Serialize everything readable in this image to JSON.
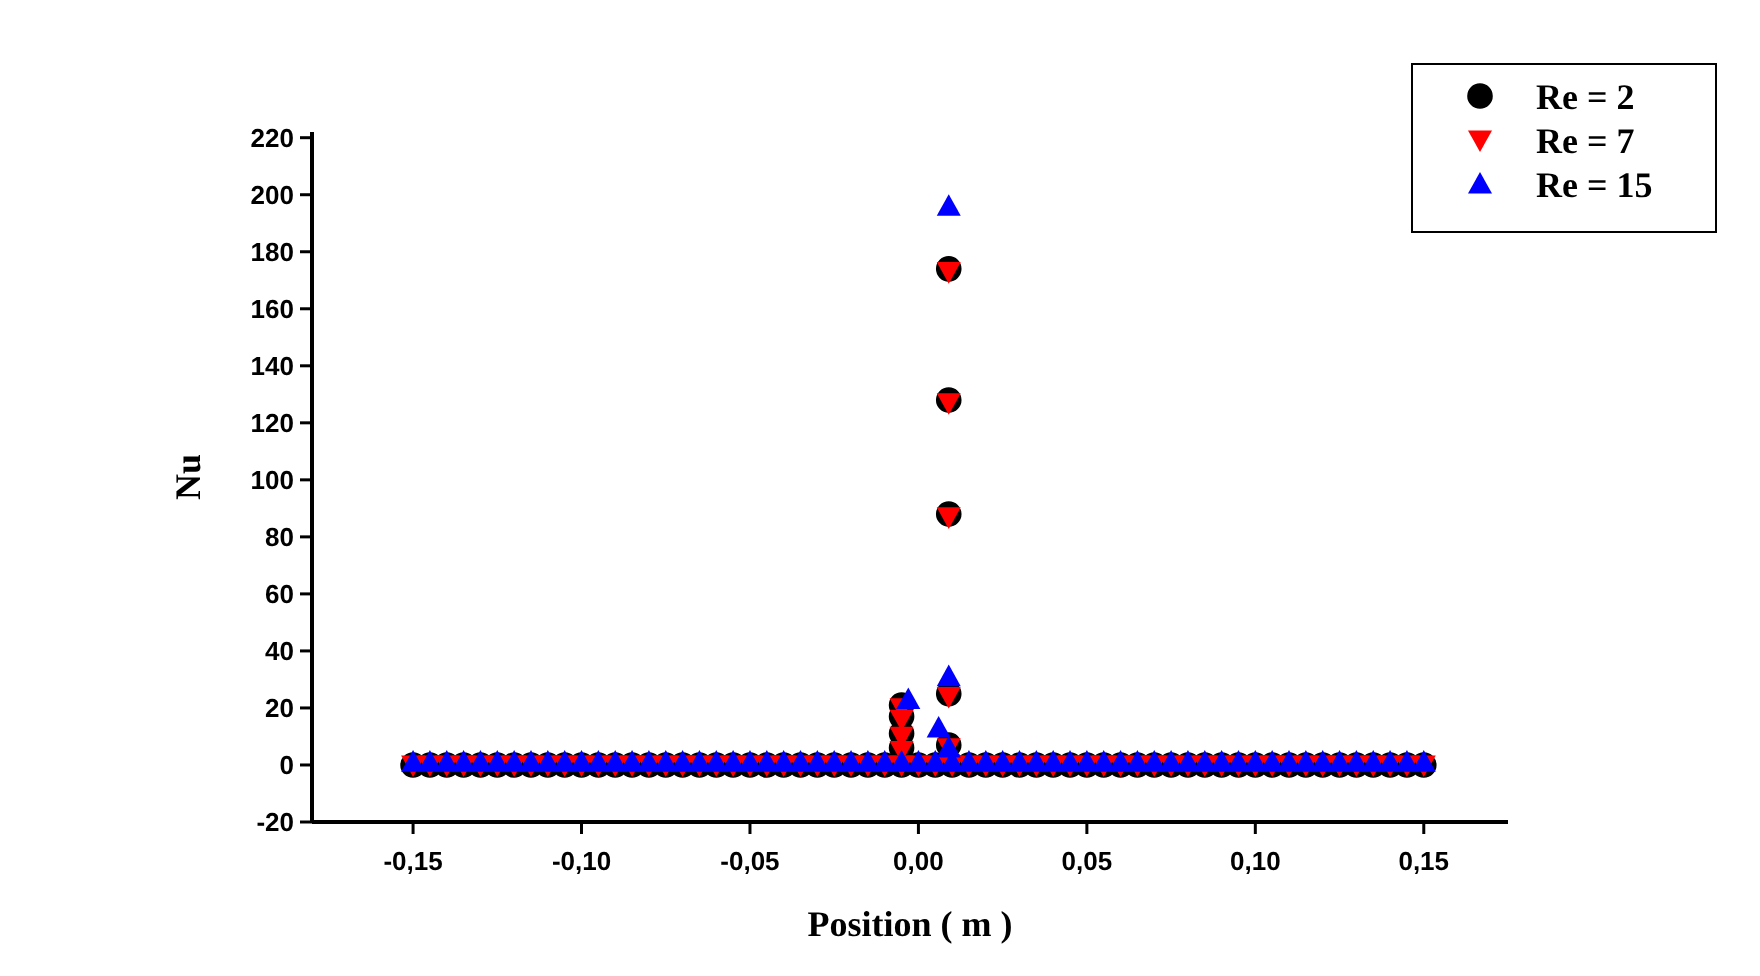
{
  "chart_data": {
    "type": "scatter",
    "xlabel": "Position ( m )",
    "ylabel": "Nu",
    "xlim": [
      -0.18,
      0.175
    ],
    "xticks": [
      {
        "value": -0.15,
        "label": "-0,15"
      },
      {
        "value": -0.1,
        "label": "-0,10"
      },
      {
        "value": -0.05,
        "label": "-0,05"
      },
      {
        "value": 0,
        "label": "0,00"
      },
      {
        "value": 0.05,
        "label": "0,05"
      },
      {
        "value": 0.1,
        "label": "0,10"
      },
      {
        "value": 0.15,
        "label": "0,15"
      }
    ],
    "ylim": [
      -20,
      222
    ],
    "yticks": [
      -20,
      0,
      20,
      40,
      60,
      80,
      100,
      120,
      140,
      160,
      180,
      200,
      220
    ],
    "legend": "top right",
    "grid": false,
    "series": [
      {
        "name": "Re = 2",
        "color": "#000000",
        "marker": "circle",
        "x": [
          -0.15,
          -0.145,
          -0.14,
          -0.135,
          -0.13,
          -0.125,
          -0.12,
          -0.115,
          -0.11,
          -0.105,
          -0.1,
          -0.095,
          -0.09,
          -0.085,
          -0.08,
          -0.075,
          -0.07,
          -0.065,
          -0.06,
          -0.055,
          -0.05,
          -0.045,
          -0.04,
          -0.035,
          -0.03,
          -0.025,
          -0.02,
          -0.015,
          -0.01,
          -0.005,
          0,
          0.005,
          0.01,
          0.015,
          0.02,
          0.025,
          0.03,
          0.035,
          0.04,
          0.045,
          0.05,
          0.055,
          0.06,
          0.065,
          0.07,
          0.075,
          0.08,
          0.085,
          0.09,
          0.095,
          0.1,
          0.105,
          0.11,
          0.115,
          0.12,
          0.125,
          0.13,
          0.135,
          0.14,
          0.145,
          0.15,
          -0.005,
          -0.005,
          -0.005,
          -0.005,
          0.009,
          0.009,
          0.009,
          0.009,
          0.009
        ],
        "values": [
          0,
          0,
          0,
          0,
          0,
          0,
          0,
          0,
          0,
          0,
          0,
          0,
          0,
          0,
          0,
          0,
          0,
          0,
          0,
          0,
          0,
          0,
          0,
          0,
          0,
          0,
          0,
          0,
          0,
          0,
          0,
          0,
          0,
          0,
          0,
          0,
          0,
          0,
          0,
          0,
          0,
          0,
          0,
          0,
          0,
          0,
          0,
          0,
          0,
          0,
          0,
          0,
          0,
          0,
          0,
          0,
          0,
          0,
          0,
          0,
          0,
          21,
          17,
          11,
          6,
          174,
          128,
          88,
          25,
          7
        ]
      },
      {
        "name": "Re = 7",
        "color": "#ff0000",
        "marker": "triangle-down",
        "x": [
          -0.15,
          -0.145,
          -0.14,
          -0.135,
          -0.13,
          -0.125,
          -0.12,
          -0.115,
          -0.11,
          -0.105,
          -0.1,
          -0.095,
          -0.09,
          -0.085,
          -0.08,
          -0.075,
          -0.07,
          -0.065,
          -0.06,
          -0.055,
          -0.05,
          -0.045,
          -0.04,
          -0.035,
          -0.03,
          -0.025,
          -0.02,
          -0.015,
          -0.01,
          -0.005,
          0,
          0.005,
          0.01,
          0.015,
          0.02,
          0.025,
          0.03,
          0.035,
          0.04,
          0.045,
          0.05,
          0.055,
          0.06,
          0.065,
          0.07,
          0.075,
          0.08,
          0.085,
          0.09,
          0.095,
          0.1,
          0.105,
          0.11,
          0.115,
          0.12,
          0.125,
          0.13,
          0.135,
          0.14,
          0.145,
          0.15,
          -0.005,
          -0.005,
          -0.005,
          -0.005,
          0.009,
          0.009,
          0.009,
          0.009,
          0.009
        ],
        "values": [
          0,
          0,
          0,
          0,
          0,
          0,
          0,
          0,
          0,
          0,
          0,
          0,
          0,
          0,
          0,
          0,
          0,
          0,
          0,
          0,
          0,
          0,
          0,
          0,
          0,
          0,
          0,
          0,
          0,
          0,
          0,
          0,
          0,
          0,
          0,
          0,
          0,
          0,
          0,
          0,
          0,
          0,
          0,
          0,
          0,
          0,
          0,
          0,
          0,
          0,
          0,
          0,
          0,
          0,
          0,
          0,
          0,
          0,
          0,
          0,
          0,
          20,
          16,
          10,
          5,
          173,
          127,
          87,
          24,
          6
        ]
      },
      {
        "name": "Re = 15",
        "color": "#0000ff",
        "marker": "triangle",
        "x": [
          -0.15,
          -0.145,
          -0.14,
          -0.135,
          -0.13,
          -0.125,
          -0.12,
          -0.115,
          -0.11,
          -0.105,
          -0.1,
          -0.095,
          -0.09,
          -0.085,
          -0.08,
          -0.075,
          -0.07,
          -0.065,
          -0.06,
          -0.055,
          -0.05,
          -0.045,
          -0.04,
          -0.035,
          -0.03,
          -0.025,
          -0.02,
          -0.015,
          -0.01,
          -0.005,
          0,
          0.005,
          0.01,
          0.015,
          0.02,
          0.025,
          0.03,
          0.035,
          0.04,
          0.045,
          0.05,
          0.055,
          0.06,
          0.065,
          0.07,
          0.075,
          0.08,
          0.085,
          0.09,
          0.095,
          0.1,
          0.105,
          0.11,
          0.115,
          0.12,
          0.125,
          0.13,
          0.135,
          0.14,
          0.145,
          0.15,
          -0.003,
          0.006,
          0.009,
          0.009,
          0.009
        ],
        "values": [
          1,
          1,
          1,
          1,
          1,
          1,
          1,
          1,
          1,
          1,
          1,
          1,
          1,
          1,
          1,
          1,
          1,
          1,
          1,
          1,
          1,
          1,
          1,
          1,
          1,
          1,
          1,
          1,
          1,
          1,
          1,
          1,
          1,
          1,
          1,
          1,
          1,
          1,
          1,
          1,
          1,
          1,
          1,
          1,
          1,
          1,
          1,
          1,
          1,
          1,
          1,
          1,
          1,
          1,
          1,
          1,
          1,
          1,
          1,
          1,
          1,
          23,
          13,
          196,
          31,
          6
        ]
      }
    ]
  }
}
